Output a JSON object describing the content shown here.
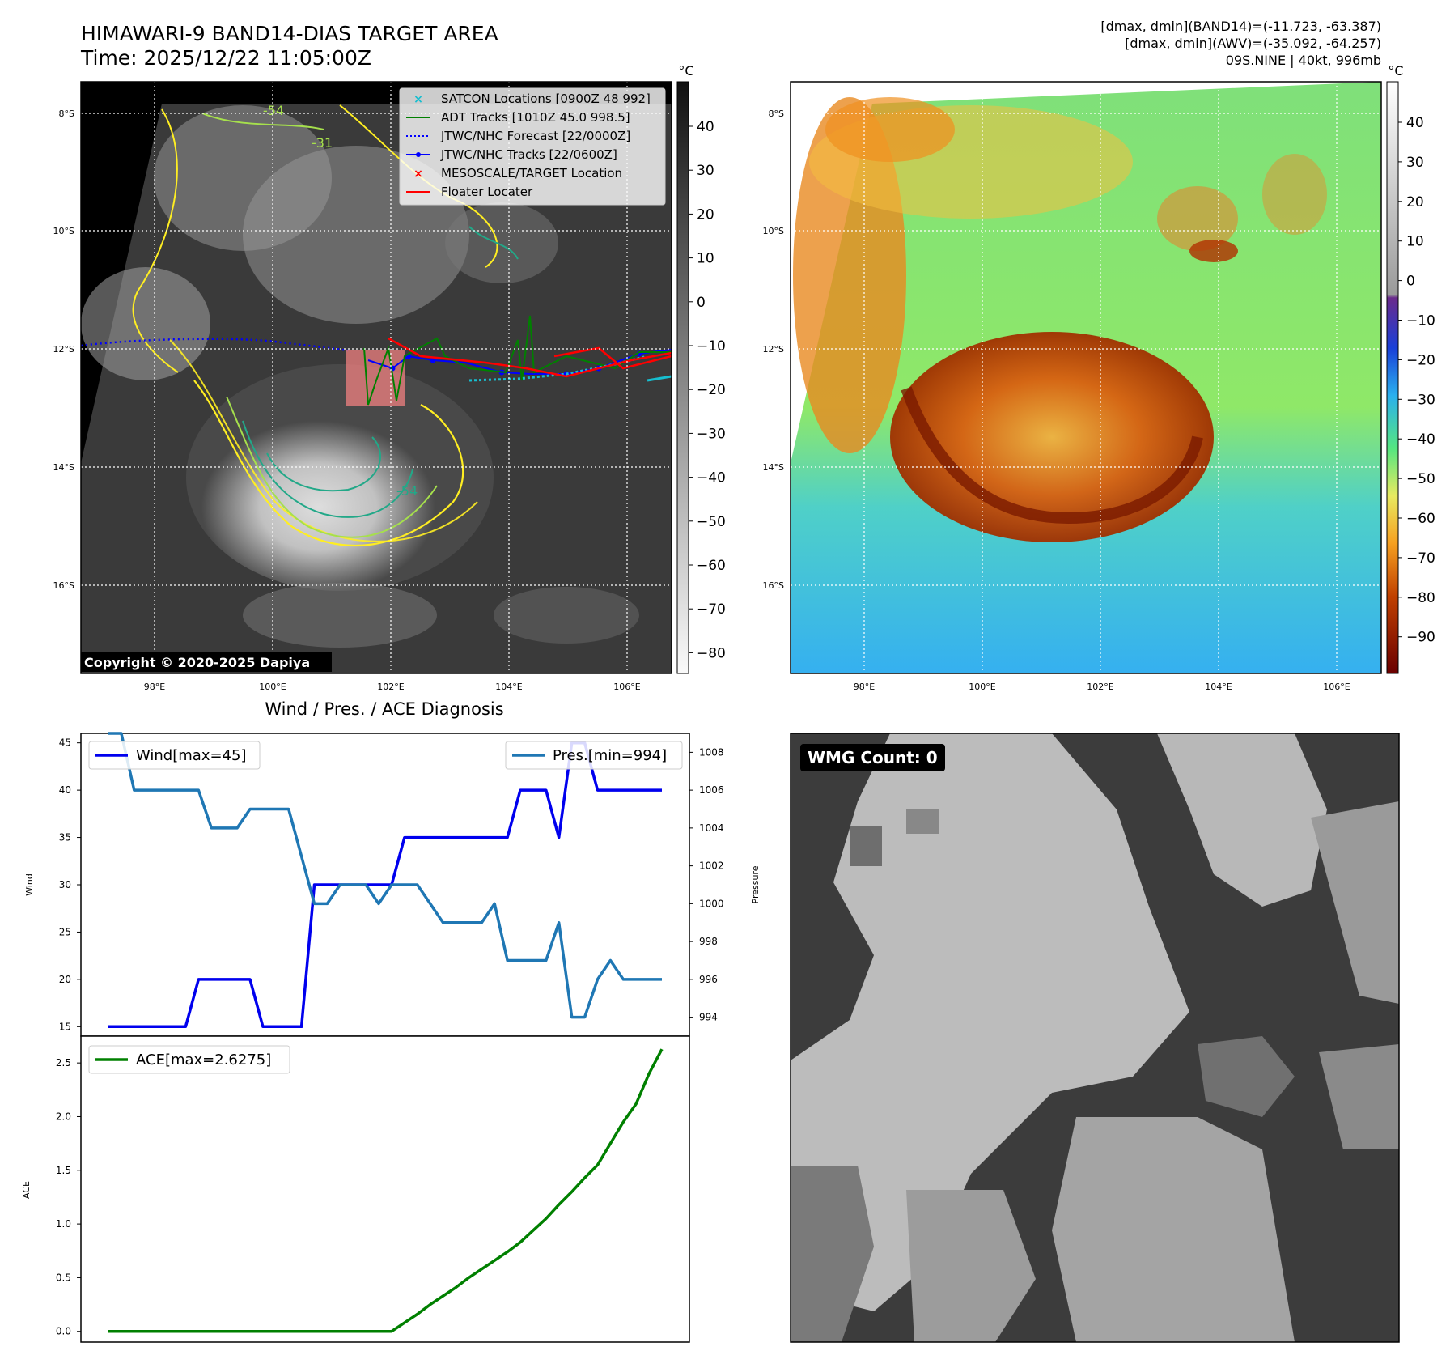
{
  "header": {
    "title": "HIMAWARI-9 BAND14-DIAS TARGET AREA",
    "time": "Time: 2025/12/22 11:05:00Z",
    "stats1": "[dmax, dmin](BAND14)=(-11.723, -63.387)",
    "stats2": "[dmax, dmin](AWV)=(-35.092, -64.257)",
    "storm": "09S.NINE | 40kt, 996mb"
  },
  "map": {
    "lat_labels": [
      "8°S",
      "10°S",
      "12°S",
      "14°S",
      "16°S"
    ],
    "lon_labels": [
      "98°E",
      "100°E",
      "102°E",
      "104°E",
      "106°E"
    ],
    "copyright": "Copyright © 2020-2025 Dapiya",
    "contour_labels": [
      "-54",
      "-31",
      "-54"
    ]
  },
  "legend": [
    {
      "label": "SATCON Locations [0900Z 48 992]",
      "color": "#17becf",
      "marker": "x"
    },
    {
      "label": "ADT Tracks [1010Z 45.0 998.5]",
      "color": "#008000",
      "marker": "line"
    },
    {
      "label": "JTWC/NHC Forecast [22/0000Z]",
      "color": "#0000ff",
      "marker": "dotted"
    },
    {
      "label": "JTWC/NHC Tracks [22/0600Z]",
      "color": "#0000ff",
      "marker": "line-dot"
    },
    {
      "label": "MESOSCALE/TARGET Location",
      "color": "#ff0000",
      "marker": "x"
    },
    {
      "label": "Floater Locater",
      "color": "#ff0000",
      "marker": "line"
    }
  ],
  "colorbar1": {
    "unit": "°C",
    "ticks": [
      "40",
      "30",
      "20",
      "10",
      "0",
      "−10",
      "−20",
      "−30",
      "−40",
      "−50",
      "−60",
      "−70",
      "−80"
    ]
  },
  "colorbar2": {
    "unit": "°C",
    "ticks": [
      "40",
      "30",
      "20",
      "10",
      "0",
      "−10",
      "−20",
      "−30",
      "−40",
      "−50",
      "−60",
      "−70",
      "−80",
      "−90"
    ]
  },
  "wmg": {
    "label": "WMG Count: 0"
  },
  "chart_data": [
    {
      "type": "line",
      "title": "Wind / Pres. / ACE Diagnosis",
      "ylabel": "Wind",
      "y2label": "Pressure",
      "ylim": [
        14,
        46
      ],
      "y2lim": [
        993,
        1009
      ],
      "yticks": [
        "15",
        "20",
        "25",
        "30",
        "35",
        "40",
        "45"
      ],
      "y2ticks": [
        "994",
        "996",
        "998",
        "1000",
        "1002",
        "1004",
        "1006",
        "1008"
      ],
      "legend_placement": "top",
      "series": [
        {
          "name": "Wind[max=45]",
          "axis": "left",
          "color": "#0000ee",
          "x": [
            0,
            1,
            2,
            3,
            4,
            5,
            6,
            7,
            8,
            9,
            10,
            11,
            12,
            13,
            14,
            15,
            16,
            17,
            18,
            19,
            20,
            21,
            22,
            23,
            24,
            25,
            26,
            27,
            28,
            29,
            30,
            31,
            32,
            33,
            34,
            35,
            36,
            37,
            38,
            39,
            40,
            41,
            42,
            43
          ],
          "values": [
            15,
            15,
            15,
            15,
            15,
            15,
            15,
            20,
            20,
            20,
            20,
            20,
            15,
            15,
            15,
            15,
            30,
            30,
            30,
            30,
            30,
            30,
            30,
            35,
            35,
            35,
            35,
            35,
            35,
            35,
            35,
            35,
            40,
            40,
            40,
            35,
            45,
            45,
            40,
            40,
            40,
            40,
            40,
            40
          ]
        },
        {
          "name": "Pres.[min=994]",
          "axis": "right",
          "color": "#1f77b4",
          "x": [
            0,
            1,
            2,
            3,
            4,
            5,
            6,
            7,
            8,
            9,
            10,
            11,
            12,
            13,
            14,
            15,
            16,
            17,
            18,
            19,
            20,
            21,
            22,
            23,
            24,
            25,
            26,
            27,
            28,
            29,
            30,
            31,
            32,
            33,
            34,
            35,
            36,
            37,
            38,
            39,
            40,
            41,
            42,
            43
          ],
          "values": [
            1009,
            1009,
            1006,
            1006,
            1006,
            1006,
            1006,
            1006,
            1004,
            1004,
            1004,
            1005,
            1005,
            1005,
            1005,
            1002.5,
            1000,
            1000,
            1001,
            1001,
            1001,
            1000,
            1001,
            1001,
            1001,
            1000,
            999,
            999,
            999,
            999,
            1000,
            997,
            997,
            997,
            997,
            999,
            994,
            994,
            996,
            997,
            996,
            996,
            996,
            996
          ]
        }
      ]
    },
    {
      "type": "line",
      "ylabel": "ACE",
      "ylim": [
        -0.1,
        2.75
      ],
      "yticks": [
        "0.0",
        "0.5",
        "1.0",
        "1.5",
        "2.0",
        "2.5"
      ],
      "legend_placement": "top-left",
      "series": [
        {
          "name": "ACE[max=2.6275]",
          "color": "#008000",
          "x": [
            0,
            1,
            2,
            3,
            4,
            5,
            6,
            7,
            8,
            9,
            10,
            11,
            12,
            13,
            14,
            15,
            16,
            17,
            18,
            19,
            20,
            21,
            22,
            23,
            24,
            25,
            26,
            27,
            28,
            29,
            30,
            31,
            32,
            33,
            34,
            35,
            36,
            37,
            38,
            39,
            40,
            41,
            42,
            43
          ],
          "values": [
            0,
            0,
            0,
            0,
            0,
            0,
            0,
            0,
            0,
            0,
            0,
            0,
            0,
            0,
            0,
            0,
            0,
            0,
            0,
            0,
            0,
            0,
            0,
            0.08,
            0.16,
            0.25,
            0.33,
            0.41,
            0.5,
            0.58,
            0.66,
            0.74,
            0.83,
            0.94,
            1.05,
            1.18,
            1.3,
            1.43,
            1.55,
            1.75,
            1.95,
            2.12,
            2.4,
            2.6275
          ]
        }
      ]
    }
  ]
}
